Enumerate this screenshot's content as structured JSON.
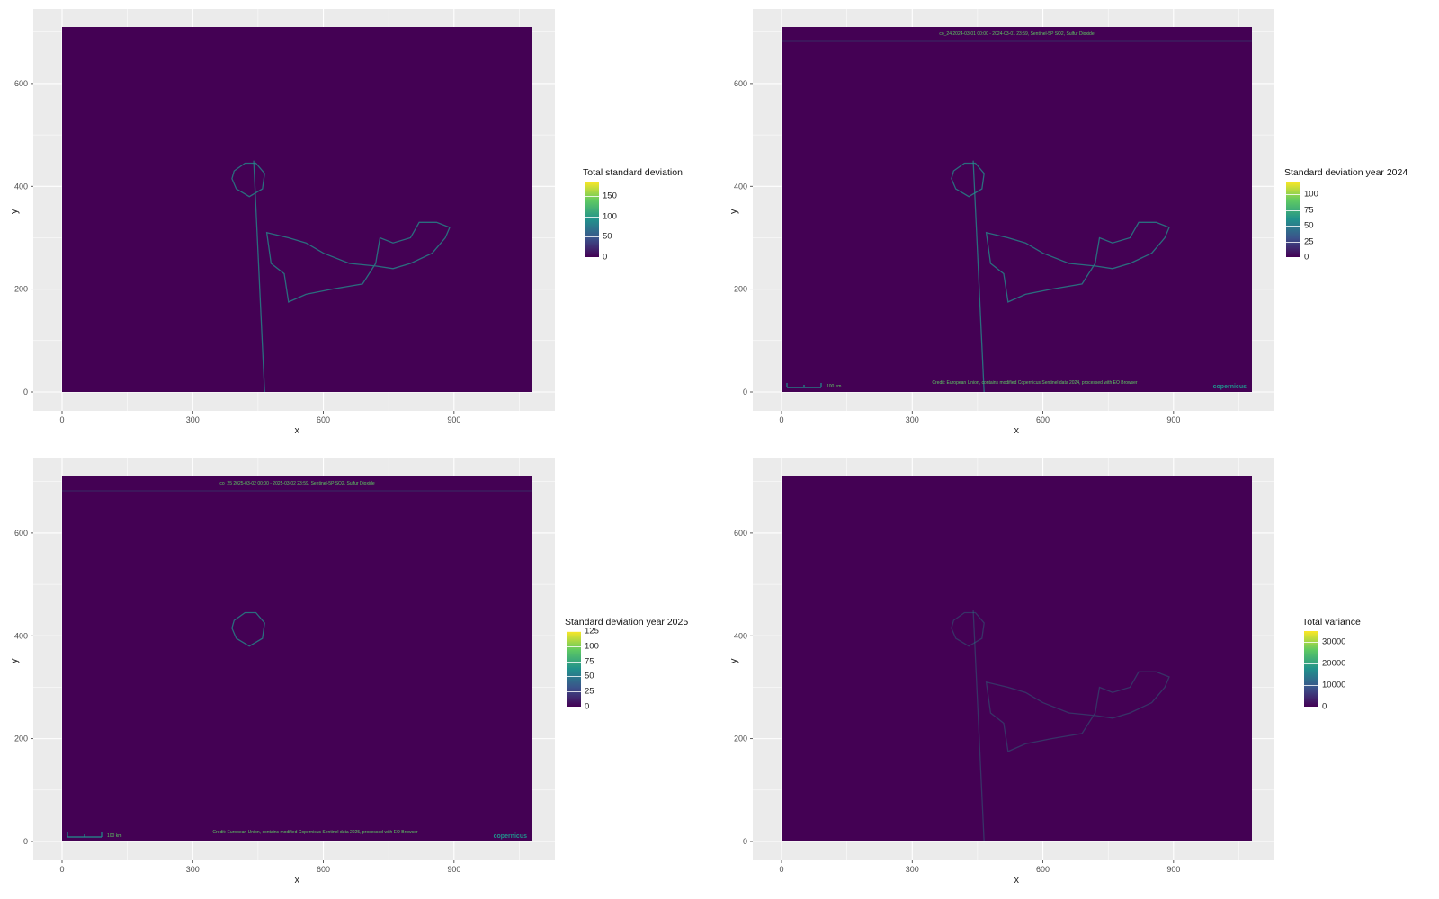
{
  "chart_data": [
    {
      "type": "heatmap",
      "legend": {
        "title": "Total standard deviation",
        "ticks": [
          0,
          50,
          100,
          150
        ],
        "max": 185
      },
      "xlabel": "x",
      "ylabel": "y",
      "xlim": [
        0,
        1080
      ],
      "ylim": [
        0,
        710
      ],
      "xticks": [
        0,
        300,
        600,
        900
      ],
      "yticks": [
        0,
        200,
        400,
        600
      ],
      "grid": true,
      "overlay": {}
    },
    {
      "type": "heatmap",
      "legend": {
        "title": "Standard deviation year 2024",
        "ticks": [
          0,
          25,
          50,
          75,
          100
        ],
        "max": 120
      },
      "xlabel": "x",
      "ylabel": "y",
      "xlim": [
        0,
        1080
      ],
      "ylim": [
        0,
        710
      ],
      "xticks": [
        0,
        300,
        600,
        900
      ],
      "yticks": [
        0,
        200,
        400,
        600
      ],
      "grid": true,
      "overlay": {
        "header": "co_24 2024-03-01 00:00 - 2024-03-01 23:59, Sentinel-5P SO2, Sulfur Dioxide",
        "scale": "100 km",
        "credit": "Credit: European Union, contains modified Copernicus Sentinel data 2024, processed with EO Browser",
        "logo": "copernicus"
      }
    },
    {
      "type": "heatmap",
      "legend": {
        "title": "Standard deviation year 2025",
        "ticks": [
          0,
          25,
          50,
          75,
          100,
          125
        ],
        "max": 125
      },
      "xlabel": "x",
      "ylabel": "y",
      "xlim": [
        0,
        1080
      ],
      "ylim": [
        0,
        710
      ],
      "xticks": [
        0,
        300,
        600,
        900
      ],
      "yticks": [
        0,
        200,
        400,
        600
      ],
      "grid": true,
      "overlay": {
        "header": "co_25 2025-03-02 00:00 - 2025-03-02 23:59, Sentinel-5P SO2, Sulfur Dioxide",
        "scale": "100 km",
        "credit": "Credit: European Union, contains modified Copernicus Sentinel data 2025, processed with EO Browser",
        "logo": "copernicus"
      }
    },
    {
      "type": "heatmap",
      "legend": {
        "title": "Total variance",
        "ticks": [
          0,
          10000,
          20000,
          30000
        ],
        "max": 35000
      },
      "xlabel": "x",
      "ylabel": "y",
      "xlim": [
        0,
        1080
      ],
      "ylim": [
        0,
        710
      ],
      "xticks": [
        0,
        300,
        600,
        900
      ],
      "yticks": [
        0,
        200,
        400,
        600
      ],
      "grid": true,
      "overlay": {}
    }
  ],
  "colors": {
    "panel_bg": "#ebebeb",
    "grid": "#ffffff",
    "raster_base": "#440154",
    "feature": "#21918c",
    "label_green": "#5ec962"
  },
  "logo_text": "copernicus"
}
